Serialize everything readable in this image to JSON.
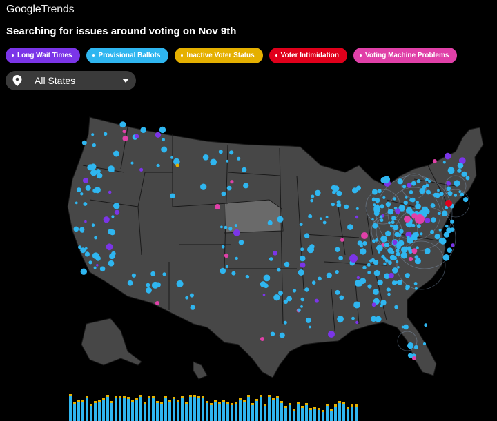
{
  "header": {
    "logo_google": "Google",
    "logo_trends": "Trends",
    "headline": "Searching for issues around voting on Nov 9th"
  },
  "filters": [
    {
      "label": "Long Wait Times",
      "color": "#7b35e8"
    },
    {
      "label": "Provisional Ballots",
      "color": "#2fb6f0"
    },
    {
      "label": "Inactive Voter Status",
      "color": "#e5b000"
    },
    {
      "label": "Voter Intimidation",
      "color": "#e0001b"
    },
    {
      "label": "Voting Machine Problems",
      "color": "#e040a8"
    }
  ],
  "location_select": {
    "value": "All States",
    "icon": "location-pin-icon"
  },
  "map": {
    "land_color": "#474747",
    "highlight_state_color": "#6a6a6a",
    "border_color": "#1a1a1a"
  },
  "timeline": {
    "colors": {
      "provisional": "#2fb6f0",
      "inactive": "#e5b000",
      "intimidation": "#e0001b"
    }
  }
}
